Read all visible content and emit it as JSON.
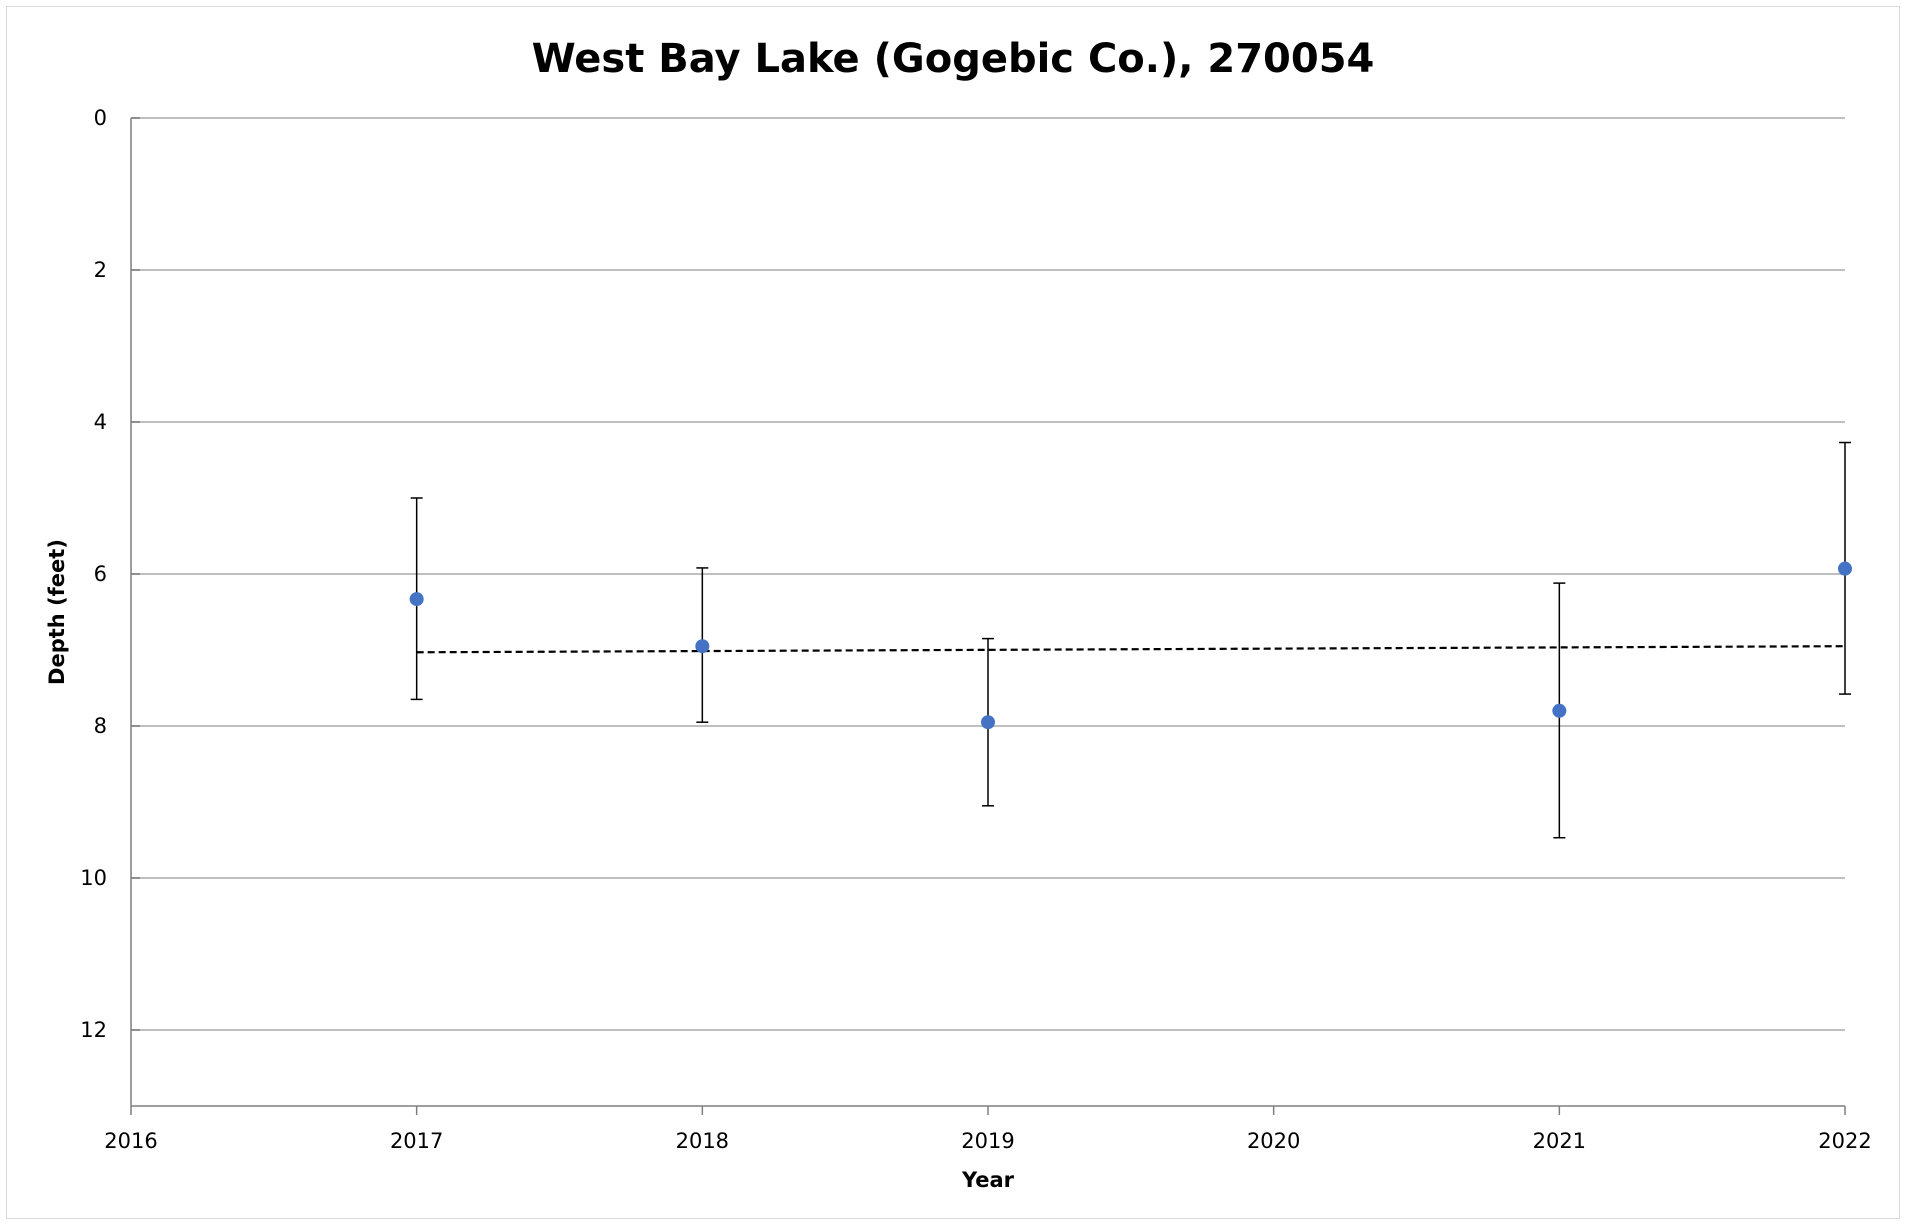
{
  "chart_data": {
    "type": "scatter",
    "title": "West Bay Lake (Gogebic Co.), 270054",
    "xlabel": "Year",
    "ylabel": "Depth (feet)",
    "xlim": [
      2016,
      2022
    ],
    "ylim": [
      0,
      13
    ],
    "y_inverted": true,
    "x_ticks": [
      "2016",
      "2017",
      "2018",
      "2019",
      "2020",
      "2021",
      "2022"
    ],
    "y_ticks": [
      "0",
      "2",
      "4",
      "6",
      "8",
      "10",
      "12"
    ],
    "grid": "horizontal",
    "legend": "none",
    "marker_color": "#4472C4",
    "series": [
      {
        "x": [
          2017,
          2018,
          2019,
          2021,
          2022
        ],
        "y": [
          6.33,
          6.95,
          7.95,
          7.8,
          5.93
        ],
        "y_err_low": [
          5.0,
          5.92,
          6.85,
          6.12,
          4.27
        ],
        "y_err_high": [
          7.65,
          7.95,
          9.05,
          9.47,
          7.58
        ]
      }
    ],
    "trendline": {
      "style": "dashed",
      "x": [
        2017,
        2022
      ],
      "y": [
        7.03,
        6.95
      ]
    }
  }
}
